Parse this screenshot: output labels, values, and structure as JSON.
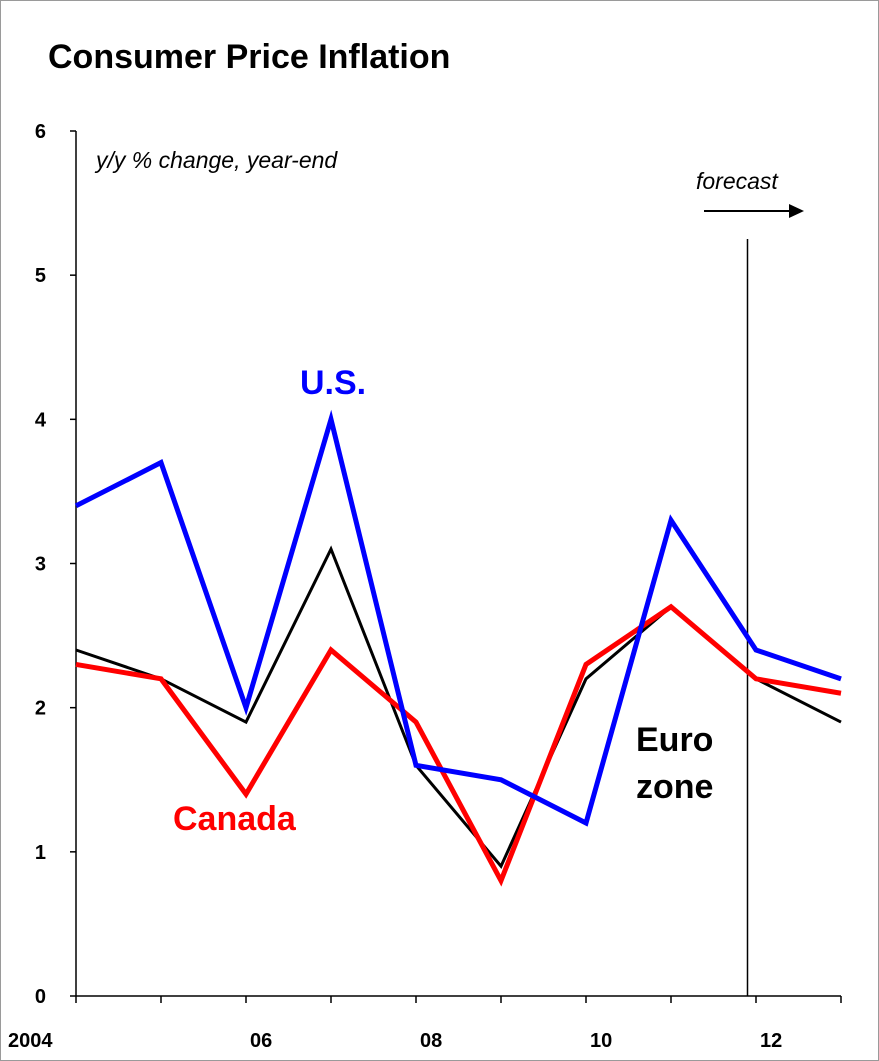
{
  "chart_data": {
    "type": "line",
    "title": "Consumer Price Inflation",
    "subtitle": "y/y % change, year-end",
    "x": [
      2004,
      2005,
      2006,
      2007,
      2008,
      2009,
      2010,
      2011,
      2012,
      2013
    ],
    "x_tick_values": [
      2004,
      2006,
      2008,
      2010,
      2012
    ],
    "x_tick_labels": [
      "2004",
      "06",
      "08",
      "10",
      "12"
    ],
    "ylim": [
      0,
      6
    ],
    "y_ticks": [
      "0",
      "1",
      "2",
      "3",
      "4",
      "5",
      "6"
    ],
    "grid": false,
    "forecast_label": "forecast",
    "forecast_start": 2011.9,
    "series": [
      {
        "name": "U.S.",
        "color": "#0000ff",
        "values": [
          3.4,
          3.7,
          2.0,
          4.0,
          1.6,
          1.5,
          1.2,
          3.3,
          2.4,
          2.2
        ]
      },
      {
        "name": "Canada",
        "color": "#ff0000",
        "values": [
          2.3,
          2.2,
          1.4,
          2.4,
          1.9,
          0.8,
          2.3,
          2.7,
          2.2,
          2.1
        ]
      },
      {
        "name": "Euro zone",
        "label_lines": [
          "Euro",
          "zone"
        ],
        "color": "#000000",
        "values": [
          2.4,
          2.2,
          1.9,
          3.1,
          1.6,
          0.9,
          2.2,
          2.7,
          2.2,
          1.9
        ]
      }
    ]
  }
}
